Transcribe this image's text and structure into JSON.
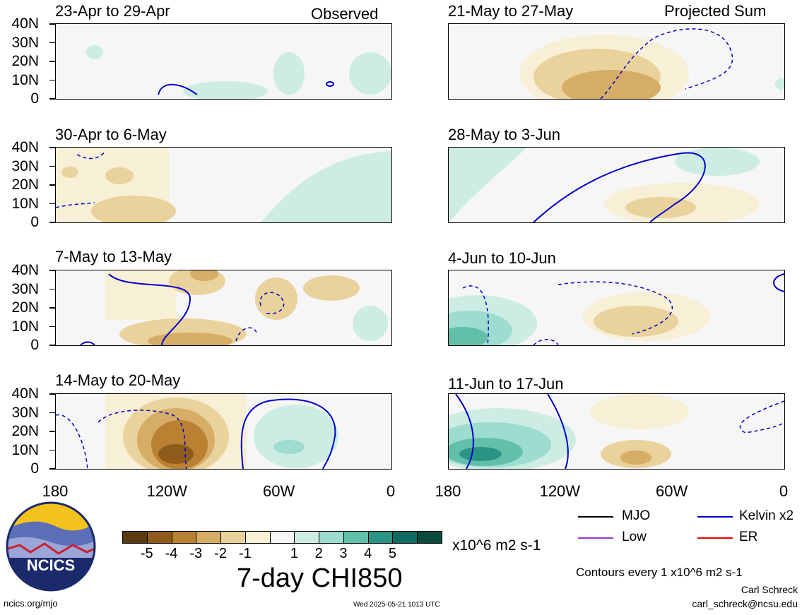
{
  "left_panels": [
    {
      "title": "23-Apr to 29-Apr",
      "note": "Observed"
    },
    {
      "title": "30-Apr to 6-May",
      "note": ""
    },
    {
      "title": "7-May to 13-May",
      "note": ""
    },
    {
      "title": "14-May to 20-May",
      "note": ""
    }
  ],
  "right_panels": [
    {
      "title": "21-May to 27-May",
      "note": "Projected Sum"
    },
    {
      "title": "28-May to 3-Jun",
      "note": ""
    },
    {
      "title": "4-Jun to 10-Jun",
      "note": ""
    },
    {
      "title": "11-Jun to 17-Jun",
      "note": ""
    }
  ],
  "y_labels": [
    "40N",
    "30N",
    "20N",
    "10N",
    "0"
  ],
  "x_labels": [
    "180",
    "120W",
    "60W",
    "0"
  ],
  "colorbar": {
    "ticks": [
      "-5",
      "-4",
      "-3",
      "-2",
      "-1",
      "1",
      "2",
      "3",
      "4",
      "5"
    ],
    "units": "x10^6 m2 s-1",
    "colors": [
      "#5a3a0e",
      "#8f5b1a",
      "#b98131",
      "#d6ad66",
      "#ead29d",
      "#f7efd6",
      "#f6f6f6",
      "#cdece4",
      "#9ddcce",
      "#62bfa9",
      "#2a9486",
      "#0f6c62",
      "#0c4a3e"
    ]
  },
  "main_title": "7-day CHI850",
  "legend": {
    "items": [
      {
        "label": "MJO",
        "color": "#000000"
      },
      {
        "label": "Kelvin x2",
        "color": "#0000cc"
      },
      {
        "label": "Low",
        "color": "#9933cc"
      },
      {
        "label": "ER",
        "color": "#ee0000"
      }
    ],
    "contour_note": "Contours every 1 x10^6 m2 s-1"
  },
  "logo_text": "NCICS",
  "footer": {
    "left": "ncics.org/mjo",
    "center": "Wed 2025-05-21 1013 UTC",
    "author": "Carl Schreck",
    "email": "carl_schreck@ncsu.edu"
  }
}
